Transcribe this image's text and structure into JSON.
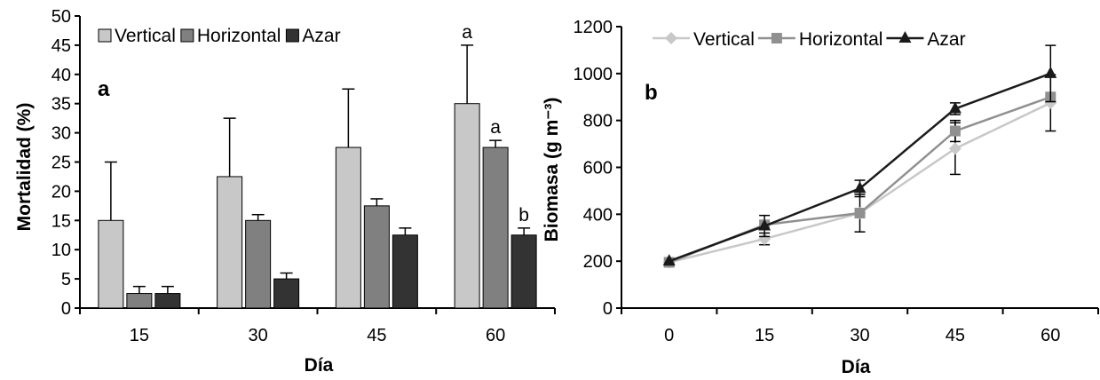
{
  "chart_data": [
    {
      "type": "bar",
      "panel_label": "a",
      "xlabel": "Día",
      "ylabel": "Mortalidad (%)",
      "ylim": [
        0,
        50
      ],
      "yticks": [
        "0",
        "5",
        "10",
        "15",
        "20",
        "25",
        "30",
        "35",
        "40",
        "45",
        "50"
      ],
      "categories": [
        "15",
        "30",
        "45",
        "60"
      ],
      "legend_position": "top",
      "series": [
        {
          "name": "Vertical",
          "color": "#c8c8c8",
          "values": [
            15,
            22.5,
            27.5,
            35
          ],
          "error": [
            10,
            10,
            10,
            10
          ]
        },
        {
          "name": "Horizontal",
          "color": "#808080",
          "values": [
            2.5,
            15,
            17.5,
            27.5
          ],
          "error": [
            1.2,
            1,
            1.2,
            1.2
          ]
        },
        {
          "name": "Azar",
          "color": "#333333",
          "values": [
            2.5,
            5,
            12.5,
            12.5
          ],
          "error": [
            1.2,
            1,
            1.2,
            1.2
          ]
        }
      ],
      "annotations": [
        {
          "series": "Vertical",
          "category": "60",
          "text": "a"
        },
        {
          "series": "Horizontal",
          "category": "60",
          "text": "a"
        },
        {
          "series": "Azar",
          "category": "60",
          "text": "b"
        }
      ]
    },
    {
      "type": "line",
      "panel_label": "b",
      "xlabel": "Día",
      "ylabel": "Biomasa (g m⁻³)",
      "ylim": [
        0,
        1200
      ],
      "yticks": [
        "0",
        "200",
        "400",
        "600",
        "800",
        "1000",
        "1200"
      ],
      "x": [
        "0",
        "15",
        "30",
        "45",
        "60"
      ],
      "legend_position": "top",
      "series": [
        {
          "name": "Vertical",
          "color": "#c8c8c8",
          "marker": "diamond",
          "values": [
            195,
            295,
            405,
            680,
            875
          ],
          "error": [
            0,
            25,
            80,
            110,
            120
          ]
        },
        {
          "name": "Horizontal",
          "color": "#909090",
          "marker": "square",
          "values": [
            195,
            355,
            405,
            755,
            900
          ],
          "error": [
            0,
            0,
            0,
            45,
            0
          ]
        },
        {
          "name": "Azar",
          "color": "#1a1a1a",
          "marker": "triangle",
          "values": [
            200,
            350,
            510,
            850,
            1000
          ],
          "error": [
            0,
            45,
            35,
            25,
            120
          ]
        }
      ]
    }
  ]
}
